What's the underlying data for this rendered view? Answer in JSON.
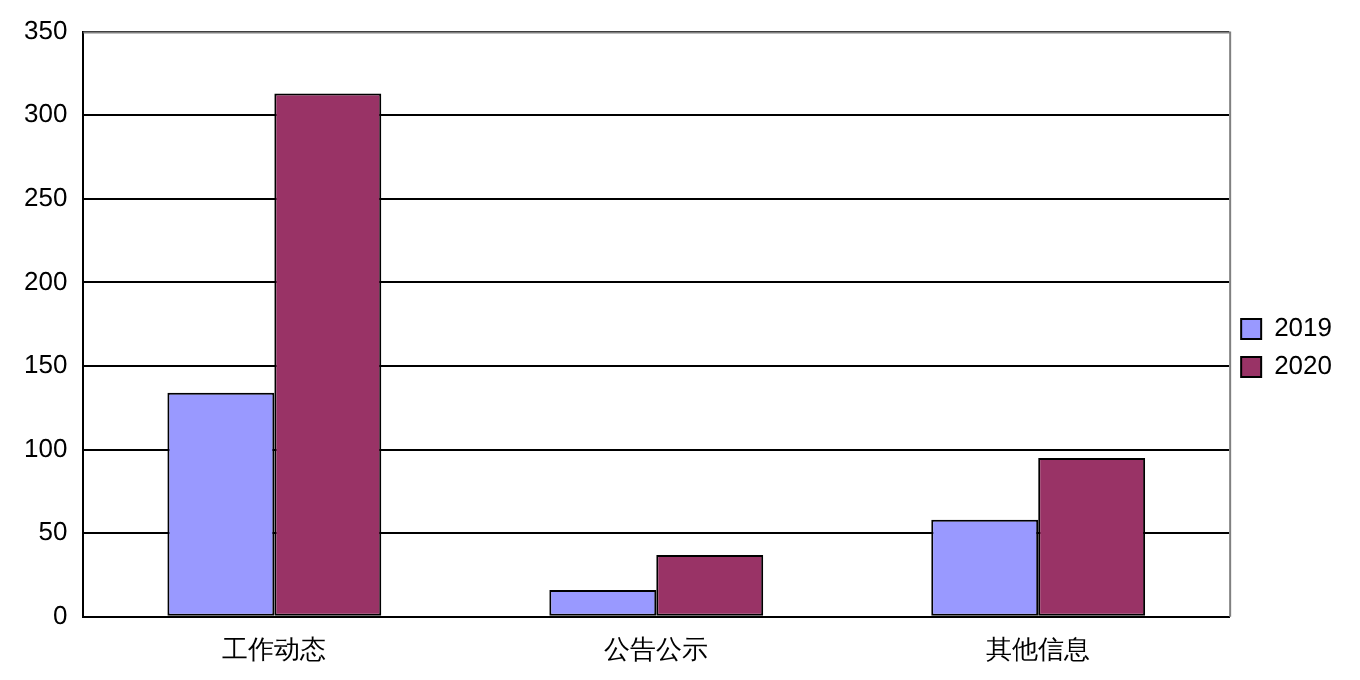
{
  "chart_data": {
    "type": "bar",
    "categories": [
      "工作动态",
      "公告公示",
      "其他信息"
    ],
    "series": [
      {
        "name": "2019",
        "color": "#9999ff",
        "values": [
          134,
          16,
          58
        ]
      },
      {
        "name": "2020",
        "color": "#993366",
        "values": [
          313,
          37,
          95
        ]
      }
    ],
    "ylim": [
      0,
      350
    ],
    "yticks": [
      0,
      50,
      100,
      150,
      200,
      250,
      300,
      350
    ],
    "grid": "y",
    "legend": "right"
  }
}
